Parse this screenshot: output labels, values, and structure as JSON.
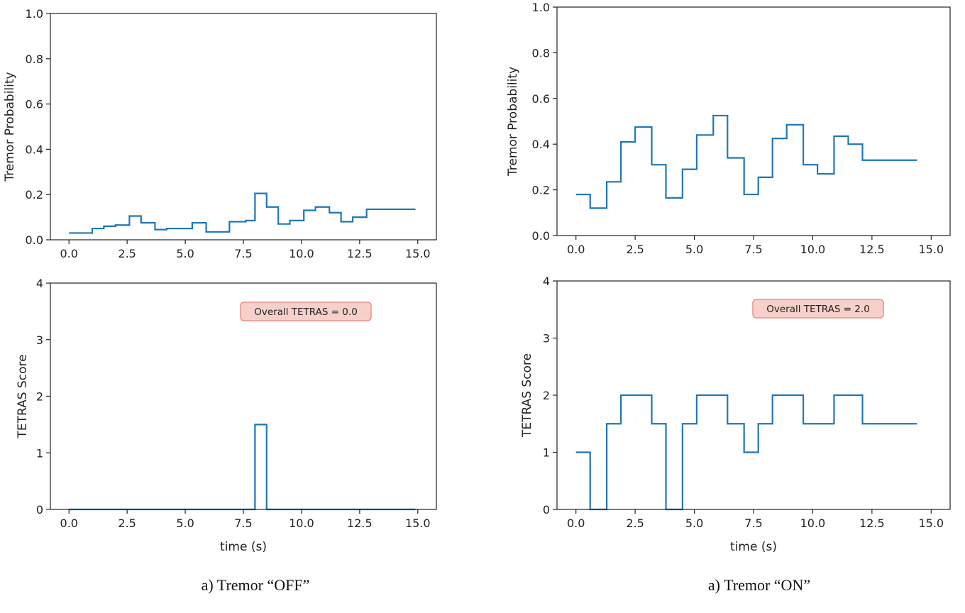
{
  "colors": {
    "series": "#1f77b4",
    "axis": "#222222",
    "annotation_fill": "#f8d0ca",
    "annotation_stroke": "#e8918a",
    "text": "#222222"
  },
  "captions": {
    "left": "a) Tremor “OFF”",
    "right": "a) Tremor “ON”"
  },
  "chart_data": [
    {
      "id": "off-probability",
      "type": "line",
      "step": true,
      "title": "",
      "xlabel": "",
      "ylabel": "Tremor Probability",
      "xlim": [
        -0.8,
        15.8
      ],
      "ylim": [
        0,
        1.0
      ],
      "xticks": [
        0.0,
        2.5,
        5.0,
        7.5,
        10.0,
        12.5,
        15.0
      ],
      "xtick_labels": [
        "0.0",
        "2.5",
        "5.0",
        "7.5",
        "10.0",
        "12.5",
        "15.0"
      ],
      "yticks": [
        0.0,
        0.2,
        0.4,
        0.6,
        0.8,
        1.0
      ],
      "ytick_labels": [
        "0.0",
        "0.2",
        "0.4",
        "0.6",
        "0.8",
        "1.0"
      ],
      "series": [
        {
          "name": "Tremor Probability",
          "x": [
            0.0,
            0.6,
            1.0,
            1.5,
            2.0,
            2.6,
            3.1,
            3.7,
            4.2,
            5.3,
            5.9,
            6.9,
            7.6,
            8.0,
            8.5,
            9.0,
            9.5,
            10.1,
            10.6,
            11.2,
            11.7,
            12.2,
            12.8,
            14.9
          ],
          "y": [
            0.03,
            0.03,
            0.05,
            0.06,
            0.065,
            0.105,
            0.075,
            0.045,
            0.05,
            0.075,
            0.035,
            0.08,
            0.085,
            0.205,
            0.145,
            0.07,
            0.085,
            0.13,
            0.145,
            0.12,
            0.08,
            0.1,
            0.135,
            0.135
          ]
        }
      ]
    },
    {
      "id": "on-probability",
      "type": "line",
      "step": true,
      "title": "",
      "xlabel": "",
      "ylabel": "Tremor Probability",
      "xlim": [
        -0.8,
        15.8
      ],
      "ylim": [
        0,
        1.0
      ],
      "xticks": [
        0.0,
        2.5,
        5.0,
        7.5,
        10.0,
        12.5,
        15.0
      ],
      "xtick_labels": [
        "0.0",
        "2.5",
        "5.0",
        "7.5",
        "10.0",
        "12.5",
        "15.0"
      ],
      "yticks": [
        0.0,
        0.2,
        0.4,
        0.6,
        0.8,
        1.0
      ],
      "ytick_labels": [
        "0.0",
        "0.2",
        "0.4",
        "0.6",
        "0.8",
        "1.0"
      ],
      "series": [
        {
          "name": "Tremor Probability",
          "x": [
            0.0,
            0.6,
            1.3,
            1.9,
            2.5,
            3.2,
            3.8,
            4.5,
            5.1,
            5.8,
            6.4,
            7.1,
            7.7,
            8.3,
            8.9,
            9.6,
            10.2,
            10.9,
            11.5,
            12.1,
            14.4
          ],
          "y": [
            0.18,
            0.12,
            0.235,
            0.41,
            0.475,
            0.31,
            0.165,
            0.29,
            0.44,
            0.525,
            0.34,
            0.18,
            0.255,
            0.425,
            0.485,
            0.31,
            0.27,
            0.435,
            0.4,
            0.33,
            0.33
          ]
        }
      ]
    },
    {
      "id": "off-tetras",
      "type": "line",
      "step": true,
      "title": "",
      "xlabel": "time (s)",
      "ylabel": "TETRAS Score",
      "xlim": [
        -0.8,
        15.8
      ],
      "ylim": [
        0,
        4
      ],
      "xticks": [
        0.0,
        2.5,
        5.0,
        7.5,
        10.0,
        12.5,
        15.0
      ],
      "xtick_labels": [
        "0.0",
        "2.5",
        "5.0",
        "7.5",
        "10.0",
        "12.5",
        "15.0"
      ],
      "yticks": [
        0,
        1,
        2,
        3,
        4
      ],
      "ytick_labels": [
        "0",
        "1",
        "2",
        "3",
        "4"
      ],
      "annotation": "Overall TETRAS = 0.0",
      "series": [
        {
          "name": "TETRAS Score",
          "x": [
            0.0,
            8.0,
            8.5,
            14.9
          ],
          "y": [
            0,
            1.5,
            0,
            0
          ]
        }
      ]
    },
    {
      "id": "on-tetras",
      "type": "line",
      "step": true,
      "title": "",
      "xlabel": "time (s)",
      "ylabel": "TETRAS Score",
      "xlim": [
        -0.8,
        15.8
      ],
      "ylim": [
        0,
        4
      ],
      "xticks": [
        0.0,
        2.5,
        5.0,
        7.5,
        10.0,
        12.5,
        15.0
      ],
      "xtick_labels": [
        "0.0",
        "2.5",
        "5.0",
        "7.5",
        "10.0",
        "12.5",
        "15.0"
      ],
      "yticks": [
        0,
        1,
        2,
        3,
        4
      ],
      "ytick_labels": [
        "0",
        "1",
        "2",
        "3",
        "4"
      ],
      "annotation": "Overall TETRAS = 2.0",
      "series": [
        {
          "name": "TETRAS Score",
          "x": [
            0.0,
            0.6,
            1.3,
            1.9,
            3.2,
            3.8,
            4.5,
            5.1,
            6.4,
            7.1,
            7.7,
            8.3,
            9.6,
            10.9,
            12.1,
            14.4
          ],
          "y": [
            1,
            0,
            1.5,
            2,
            1.5,
            0,
            1.5,
            2,
            1.5,
            1,
            1.5,
            2,
            1.5,
            2,
            1.5,
            1.5
          ]
        }
      ]
    }
  ]
}
